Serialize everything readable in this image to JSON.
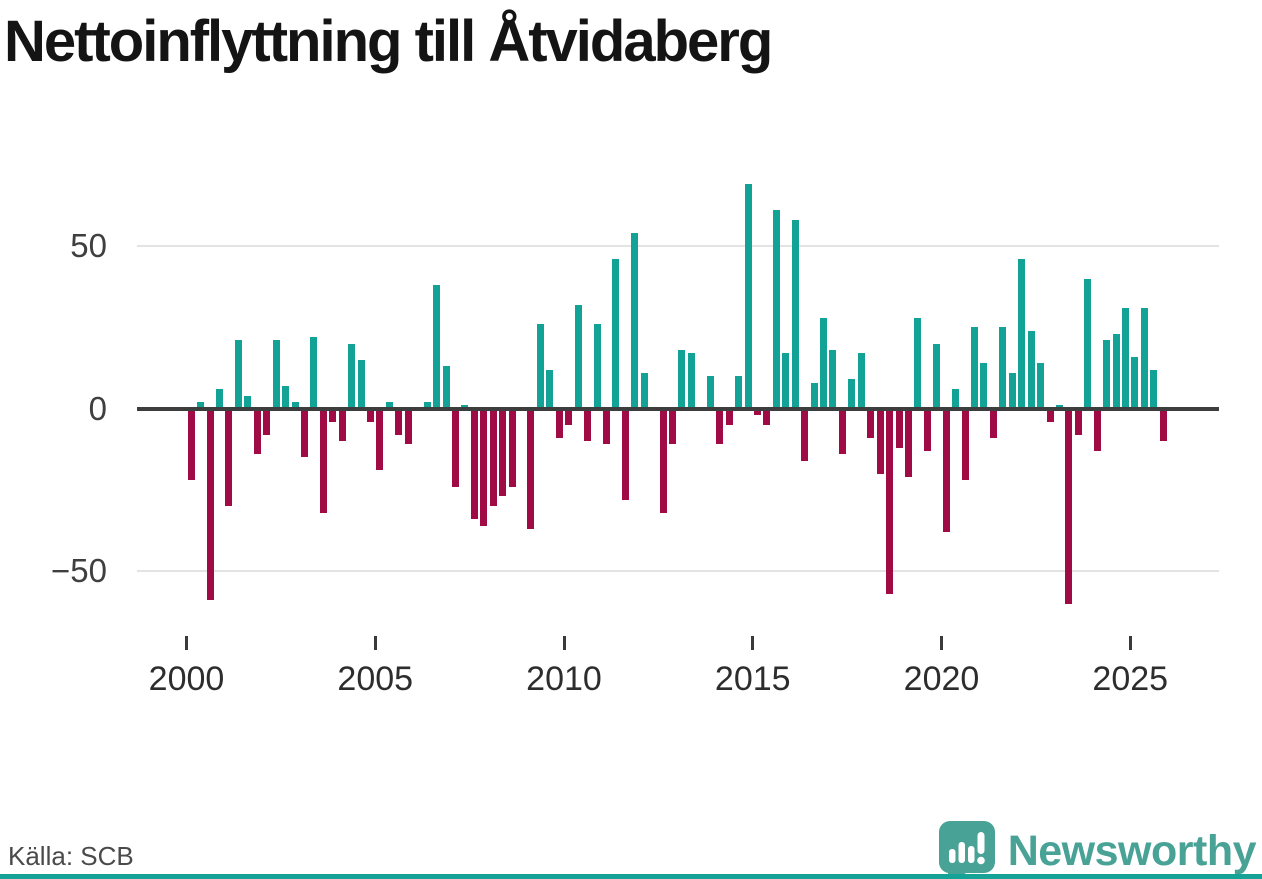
{
  "chart_data": {
    "type": "bar",
    "title": "Nettoinflyttning till Åtvidaberg",
    "period": "quarterly",
    "x_start": "2000 Q1",
    "x_end": "2025 Q4",
    "quarters_per_year": 4,
    "start_year": 2000,
    "values": [
      -22,
      2,
      -59,
      6,
      -30,
      21,
      4,
      -14,
      -8,
      21,
      7,
      2,
      -15,
      22,
      -32,
      -4,
      -10,
      20,
      15,
      -4,
      -19,
      2,
      -8,
      -11,
      0,
      2,
      38,
      13,
      -24,
      1,
      -34,
      -36,
      -30,
      -27,
      -24,
      0,
      -37,
      26,
      12,
      -9,
      -5,
      32,
      -10,
      26,
      -11,
      46,
      -28,
      54,
      11,
      0,
      -32,
      -11,
      18,
      17,
      0,
      10,
      -11,
      -5,
      10,
      69,
      -2,
      -5,
      61,
      17,
      58,
      -16,
      8,
      28,
      18,
      -14,
      9,
      17,
      -9,
      -20,
      -57,
      -12,
      -21,
      28,
      -13,
      20,
      -38,
      6,
      -22,
      25,
      14,
      -9,
      25,
      11,
      46,
      24,
      14,
      -4,
      1,
      -60,
      -8,
      40,
      -13,
      21,
      23,
      31,
      16,
      31,
      12,
      -10
    ],
    "positive_color": "#12a296",
    "negative_color": "#a00b45",
    "ylim": [
      -65,
      75
    ],
    "yticks": [
      50,
      0,
      -50
    ],
    "ytick_labels": [
      "50",
      "0",
      "−50"
    ],
    "xticks": [
      2000,
      2005,
      2010,
      2015,
      2020,
      2025
    ],
    "grid": "horizontal",
    "legend": "none",
    "xlabel": "",
    "ylabel": ""
  },
  "footer": {
    "source_label": "Källa: SCB",
    "brand_name": "Newsworthy"
  },
  "colors": {
    "accent_teal": "#12a296",
    "accent_maroon": "#a00b45",
    "brand_teal": "#48a295",
    "axis_dark": "#3d3d3d",
    "grid_light": "#e3e3e3"
  }
}
